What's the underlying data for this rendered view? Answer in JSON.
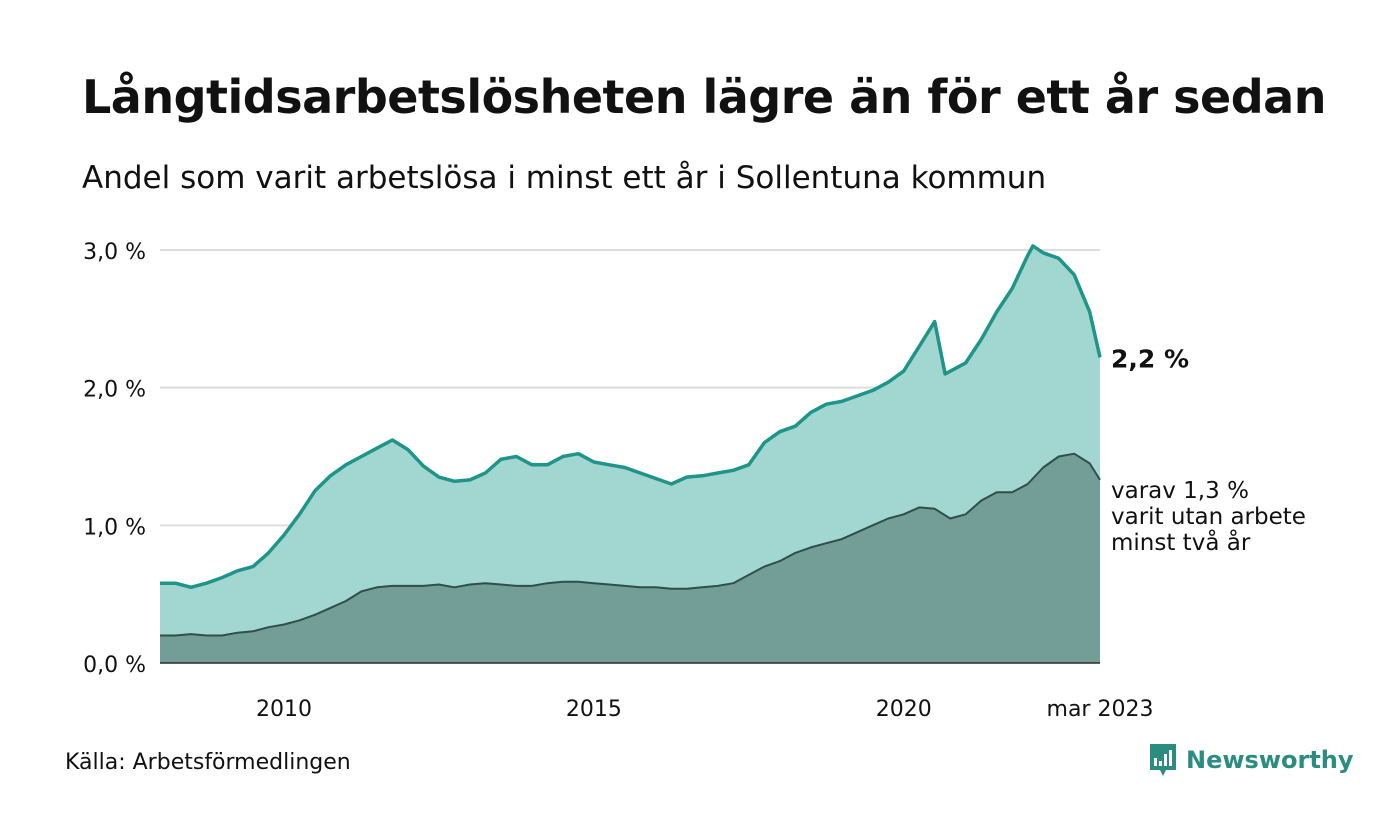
{
  "header": {
    "title": "Långtidsarbetslösheten lägre än för ett år sedan",
    "subtitle": "Andel som varit arbetslösa i minst ett år i Sollentuna kommun"
  },
  "footer": {
    "source": "Källa: Arbetsförmedlingen",
    "brand": "Newsworthy"
  },
  "colors": {
    "total_line": "#1f9488",
    "total_fill": "#a2d6d0",
    "longterm_line": "#2f4f4a",
    "longterm_fill": "#729e97",
    "grid": "#dddddd",
    "brand": "#2b8c80"
  },
  "chart_data": {
    "type": "area",
    "title": "Långtidsarbetslösheten lägre än för ett år sedan",
    "subtitle": "Andel som varit arbetslösa i minst ett år i Sollentuna kommun",
    "xlabel": "",
    "ylabel": "",
    "x_range": [
      "2008-01",
      "2023-03"
    ],
    "ylim": [
      0,
      3.0
    ],
    "y_ticks": [
      {
        "value": 0,
        "label": "0,0 %"
      },
      {
        "value": 1.0,
        "label": "1,0 %"
      },
      {
        "value": 2.0,
        "label": "2,0 %"
      },
      {
        "value": 3.0,
        "label": "3,0 %"
      }
    ],
    "x_ticks": [
      {
        "value": "2010-01",
        "label": "2010"
      },
      {
        "value": "2015-01",
        "label": "2015"
      },
      {
        "value": "2020-01",
        "label": "2020"
      },
      {
        "value": "2023-03",
        "label": "mar 2023"
      }
    ],
    "grid": true,
    "legend": "none",
    "annotations": [
      {
        "series": 0,
        "text": "2,2 %",
        "bold": true
      },
      {
        "series": 1,
        "lines": [
          "varav 1,3 %",
          "varit utan arbete",
          "minst två år"
        ],
        "bold": false
      }
    ],
    "series": [
      {
        "key": "total",
        "points": [
          [
            "2008-01",
            0.58
          ],
          [
            "2008-04",
            0.58
          ],
          [
            "2008-07",
            0.55
          ],
          [
            "2008-10",
            0.58
          ],
          [
            "2009-01",
            0.62
          ],
          [
            "2009-04",
            0.67
          ],
          [
            "2009-07",
            0.7
          ],
          [
            "2009-10",
            0.8
          ],
          [
            "2010-01",
            0.93
          ],
          [
            "2010-04",
            1.08
          ],
          [
            "2010-07",
            1.25
          ],
          [
            "2010-10",
            1.36
          ],
          [
            "2011-01",
            1.44
          ],
          [
            "2011-04",
            1.5
          ],
          [
            "2011-07",
            1.56
          ],
          [
            "2011-10",
            1.62
          ],
          [
            "2012-01",
            1.55
          ],
          [
            "2012-04",
            1.43
          ],
          [
            "2012-07",
            1.35
          ],
          [
            "2012-10",
            1.32
          ],
          [
            "2013-01",
            1.33
          ],
          [
            "2013-04",
            1.38
          ],
          [
            "2013-07",
            1.48
          ],
          [
            "2013-10",
            1.5
          ],
          [
            "2014-01",
            1.44
          ],
          [
            "2014-04",
            1.44
          ],
          [
            "2014-07",
            1.5
          ],
          [
            "2014-10",
            1.52
          ],
          [
            "2015-01",
            1.46
          ],
          [
            "2015-04",
            1.44
          ],
          [
            "2015-07",
            1.42
          ],
          [
            "2015-10",
            1.38
          ],
          [
            "2016-01",
            1.34
          ],
          [
            "2016-04",
            1.3
          ],
          [
            "2016-07",
            1.35
          ],
          [
            "2016-10",
            1.36
          ],
          [
            "2017-01",
            1.38
          ],
          [
            "2017-04",
            1.4
          ],
          [
            "2017-07",
            1.44
          ],
          [
            "2017-10",
            1.6
          ],
          [
            "2018-01",
            1.68
          ],
          [
            "2018-04",
            1.72
          ],
          [
            "2018-07",
            1.82
          ],
          [
            "2018-10",
            1.88
          ],
          [
            "2019-01",
            1.9
          ],
          [
            "2019-04",
            1.94
          ],
          [
            "2019-07",
            1.98
          ],
          [
            "2019-10",
            2.04
          ],
          [
            "2020-01",
            2.12
          ],
          [
            "2020-04",
            2.3
          ],
          [
            "2020-07",
            2.48
          ],
          [
            "2020-09",
            2.1
          ],
          [
            "2021-01",
            2.18
          ],
          [
            "2021-04",
            2.35
          ],
          [
            "2021-07",
            2.55
          ],
          [
            "2021-10",
            2.72
          ],
          [
            "2022-01",
            2.96
          ],
          [
            "2022-02",
            3.03
          ],
          [
            "2022-04",
            2.98
          ],
          [
            "2022-07",
            2.94
          ],
          [
            "2022-10",
            2.82
          ],
          [
            "2023-01",
            2.55
          ],
          [
            "2023-03",
            2.22
          ]
        ]
      },
      {
        "key": "longterm",
        "points": [
          [
            "2008-01",
            0.2
          ],
          [
            "2008-04",
            0.2
          ],
          [
            "2008-07",
            0.21
          ],
          [
            "2008-10",
            0.2
          ],
          [
            "2009-01",
            0.2
          ],
          [
            "2009-04",
            0.22
          ],
          [
            "2009-07",
            0.23
          ],
          [
            "2009-10",
            0.26
          ],
          [
            "2010-01",
            0.28
          ],
          [
            "2010-04",
            0.31
          ],
          [
            "2010-07",
            0.35
          ],
          [
            "2010-10",
            0.4
          ],
          [
            "2011-01",
            0.45
          ],
          [
            "2011-04",
            0.52
          ],
          [
            "2011-07",
            0.55
          ],
          [
            "2011-10",
            0.56
          ],
          [
            "2012-01",
            0.56
          ],
          [
            "2012-04",
            0.56
          ],
          [
            "2012-07",
            0.57
          ],
          [
            "2012-10",
            0.55
          ],
          [
            "2013-01",
            0.57
          ],
          [
            "2013-04",
            0.58
          ],
          [
            "2013-07",
            0.57
          ],
          [
            "2013-10",
            0.56
          ],
          [
            "2014-01",
            0.56
          ],
          [
            "2014-04",
            0.58
          ],
          [
            "2014-07",
            0.59
          ],
          [
            "2014-10",
            0.59
          ],
          [
            "2015-01",
            0.58
          ],
          [
            "2015-04",
            0.57
          ],
          [
            "2015-07",
            0.56
          ],
          [
            "2015-10",
            0.55
          ],
          [
            "2016-01",
            0.55
          ],
          [
            "2016-04",
            0.54
          ],
          [
            "2016-07",
            0.54
          ],
          [
            "2016-10",
            0.55
          ],
          [
            "2017-01",
            0.56
          ],
          [
            "2017-04",
            0.58
          ],
          [
            "2017-07",
            0.64
          ],
          [
            "2017-10",
            0.7
          ],
          [
            "2018-01",
            0.74
          ],
          [
            "2018-04",
            0.8
          ],
          [
            "2018-07",
            0.84
          ],
          [
            "2018-10",
            0.87
          ],
          [
            "2019-01",
            0.9
          ],
          [
            "2019-04",
            0.95
          ],
          [
            "2019-07",
            1.0
          ],
          [
            "2019-10",
            1.05
          ],
          [
            "2020-01",
            1.08
          ],
          [
            "2020-04",
            1.13
          ],
          [
            "2020-07",
            1.12
          ],
          [
            "2020-10",
            1.05
          ],
          [
            "2021-01",
            1.08
          ],
          [
            "2021-04",
            1.18
          ],
          [
            "2021-07",
            1.24
          ],
          [
            "2021-10",
            1.24
          ],
          [
            "2022-01",
            1.3
          ],
          [
            "2022-04",
            1.42
          ],
          [
            "2022-07",
            1.5
          ],
          [
            "2022-10",
            1.52
          ],
          [
            "2023-01",
            1.45
          ],
          [
            "2023-03",
            1.33
          ]
        ]
      }
    ]
  }
}
